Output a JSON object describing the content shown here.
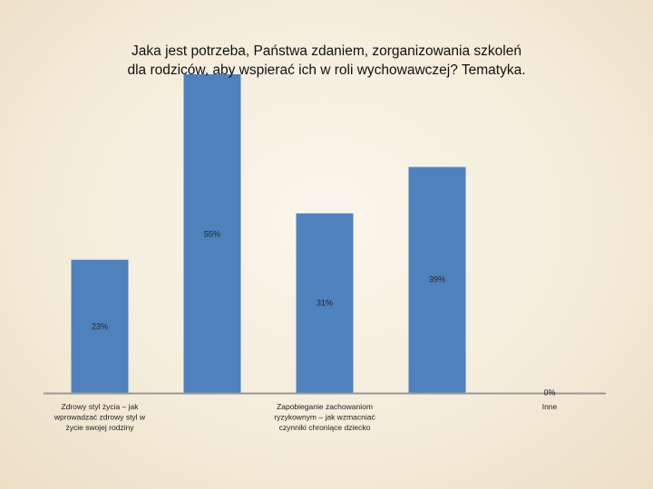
{
  "title_line1": "Jaka jest potrzeba, Państwa zdaniem, zorganizowania szkoleń",
  "title_line2": "dla rodziców, aby wspierać ich w roli wychowawczej? Tematyka.",
  "colors": {
    "bar": "#4f81bd",
    "axis": "#999999",
    "text": "#222222"
  },
  "chart_data": {
    "type": "bar",
    "title": "Jaka jest potrzeba, Państwa zdaniem, zorganizowania szkoleń dla rodziców, aby wspierać ich w roli wychowawczej? Tematyka.",
    "categories": [
      [
        "Zdrowy styl życia – jak",
        "wprowadzać zdrowy styl w",
        "życie swojej rodziny"
      ],
      [],
      [
        "Zapobieganie zachowaniom",
        "ryzykownym – jak wzmacniać",
        "czynniki chroniące dziecko"
      ],
      [],
      [
        "Inne"
      ]
    ],
    "values": [
      23,
      55,
      31,
      39,
      0
    ],
    "data_labels": [
      "23%",
      "55%",
      "31%",
      "39%",
      "0%"
    ],
    "ylim": [
      0,
      55
    ],
    "xlabel": "",
    "ylabel": "",
    "grid": false,
    "legend": "none"
  }
}
